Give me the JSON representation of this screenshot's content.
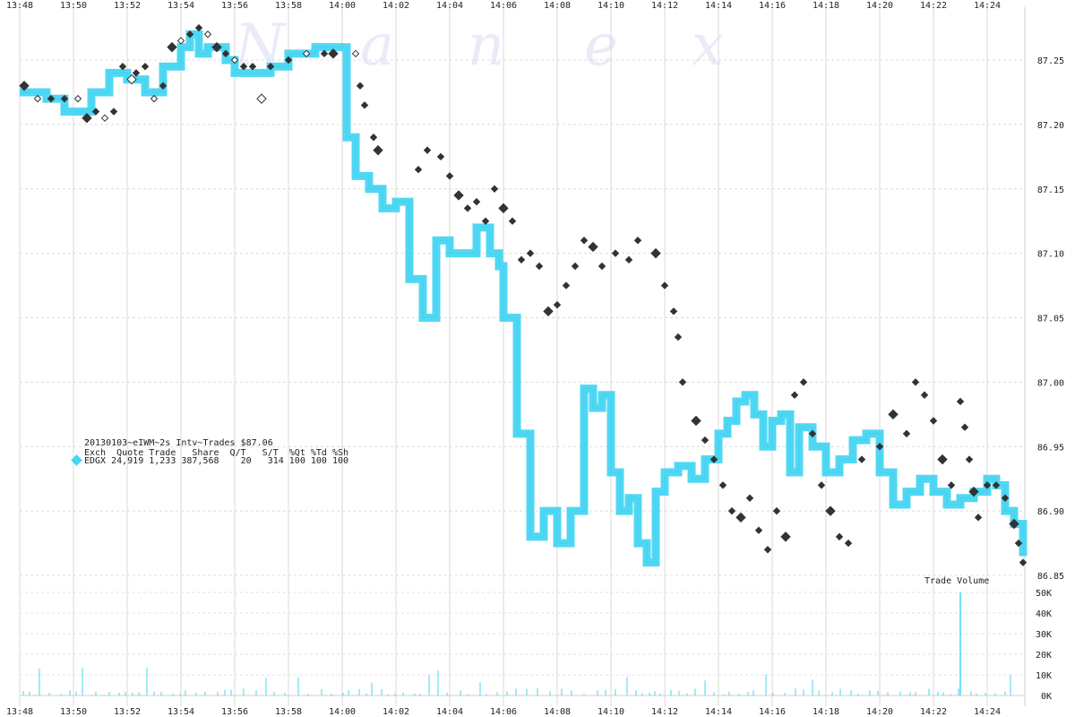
{
  "chart_data": {
    "type": "line",
    "watermark": [
      "N",
      "a",
      "n",
      "e",
      "x"
    ],
    "x_ticks": [
      "13:48",
      "13:50",
      "13:52",
      "13:54",
      "13:56",
      "13:58",
      "14:00",
      "14:02",
      "14:04",
      "14:06",
      "14:08",
      "14:10",
      "14:12",
      "14:14",
      "14:16",
      "14:18",
      "14:20",
      "14:22",
      "14:24"
    ],
    "price_ticks": [
      "87.25",
      "87.20",
      "87.15",
      "87.10",
      "87.05",
      "87.00",
      "86.95",
      "86.90",
      "86.85"
    ],
    "price_ylim": [
      86.85,
      87.25
    ],
    "volume_label": "Trade Volume",
    "volume_ticks": [
      "50K",
      "40K",
      "30K",
      "20K",
      "10K",
      "0K"
    ],
    "volume_ylim": [
      0,
      50000
    ],
    "info_title": "20130103~eIWM~2s Intv~Trades $87.06",
    "info_header": "Exch  Quote Trade   Share  Q/T   S/T  %Qt %Td %Sh",
    "info_row": "EDGX 24,919 1,233 387,568    20   314 100 100 100",
    "quote_color": "#47d5f2",
    "trade_color": "#333333",
    "quote_series": [
      [
        "13:48:00",
        87.225
      ],
      [
        "13:49:00",
        87.22
      ],
      [
        "13:49:40",
        87.21
      ],
      [
        "13:50:00",
        87.21
      ],
      [
        "13:50:40",
        87.225
      ],
      [
        "13:51:20",
        87.24
      ],
      [
        "13:52:00",
        87.235
      ],
      [
        "13:52:40",
        87.225
      ],
      [
        "13:53:20",
        87.245
      ],
      [
        "13:54:00",
        87.26
      ],
      [
        "13:54:20",
        87.27
      ],
      [
        "13:54:40",
        87.255
      ],
      [
        "13:55:00",
        87.26
      ],
      [
        "13:55:40",
        87.25
      ],
      [
        "13:56:00",
        87.24
      ],
      [
        "13:56:40",
        87.24
      ],
      [
        "13:57:20",
        87.245
      ],
      [
        "13:58:00",
        87.255
      ],
      [
        "13:59:00",
        87.26
      ],
      [
        "14:00:00",
        87.26
      ],
      [
        "14:00:10",
        87.19
      ],
      [
        "14:00:30",
        87.16
      ],
      [
        "14:01:00",
        87.15
      ],
      [
        "14:01:30",
        87.135
      ],
      [
        "14:02:00",
        87.14
      ],
      [
        "14:02:30",
        87.08
      ],
      [
        "14:03:00",
        87.05
      ],
      [
        "14:03:30",
        87.11
      ],
      [
        "14:04:00",
        87.1
      ],
      [
        "14:04:30",
        87.1
      ],
      [
        "14:05:00",
        87.12
      ],
      [
        "14:05:30",
        87.1
      ],
      [
        "14:05:50",
        87.09
      ],
      [
        "14:06:00",
        87.05
      ],
      [
        "14:06:30",
        86.96
      ],
      [
        "14:07:00",
        86.88
      ],
      [
        "14:07:30",
        86.9
      ],
      [
        "14:08:00",
        86.875
      ],
      [
        "14:08:30",
        86.9
      ],
      [
        "14:09:00",
        86.995
      ],
      [
        "14:09:20",
        86.98
      ],
      [
        "14:09:40",
        86.99
      ],
      [
        "14:10:00",
        86.93
      ],
      [
        "14:10:20",
        86.9
      ],
      [
        "14:10:40",
        86.91
      ],
      [
        "14:11:00",
        86.875
      ],
      [
        "14:11:20",
        86.86
      ],
      [
        "14:11:40",
        86.915
      ],
      [
        "14:12:00",
        86.93
      ],
      [
        "14:12:30",
        86.935
      ],
      [
        "14:13:00",
        86.925
      ],
      [
        "14:13:30",
        86.94
      ],
      [
        "14:14:00",
        86.96
      ],
      [
        "14:14:20",
        86.97
      ],
      [
        "14:14:40",
        86.985
      ],
      [
        "14:15:00",
        86.99
      ],
      [
        "14:15:20",
        86.975
      ],
      [
        "14:15:40",
        86.95
      ],
      [
        "14:16:00",
        86.97
      ],
      [
        "14:16:20",
        86.975
      ],
      [
        "14:16:40",
        86.93
      ],
      [
        "14:17:00",
        86.965
      ],
      [
        "14:17:30",
        86.95
      ],
      [
        "14:18:00",
        86.93
      ],
      [
        "14:18:30",
        86.94
      ],
      [
        "14:19:00",
        86.955
      ],
      [
        "14:19:30",
        86.96
      ],
      [
        "14:20:00",
        86.93
      ],
      [
        "14:20:30",
        86.905
      ],
      [
        "14:21:00",
        86.915
      ],
      [
        "14:21:30",
        86.925
      ],
      [
        "14:22:00",
        86.915
      ],
      [
        "14:22:30",
        86.905
      ],
      [
        "14:23:00",
        86.91
      ],
      [
        "14:23:30",
        86.915
      ],
      [
        "14:24:00",
        86.925
      ],
      [
        "14:24:20",
        86.92
      ],
      [
        "14:24:40",
        86.9
      ],
      [
        "14:25:00",
        86.89
      ],
      [
        "14:25:20",
        86.865
      ]
    ],
    "trades": [
      [
        "13:48:10",
        87.23
      ],
      [
        "13:48:40",
        87.22
      ],
      [
        "13:49:10",
        87.22
      ],
      [
        "13:49:40",
        87.22
      ],
      [
        "13:50:10",
        87.22
      ],
      [
        "13:50:30",
        87.205
      ],
      [
        "13:50:50",
        87.21
      ],
      [
        "13:51:10",
        87.205
      ],
      [
        "13:51:30",
        87.21
      ],
      [
        "13:51:50",
        87.245
      ],
      [
        "13:52:10",
        87.235
      ],
      [
        "13:52:20",
        87.24
      ],
      [
        "13:52:40",
        87.245
      ],
      [
        "13:53:00",
        87.22
      ],
      [
        "13:53:20",
        87.23
      ],
      [
        "13:53:40",
        87.26
      ],
      [
        "13:54:00",
        87.265
      ],
      [
        "13:54:20",
        87.27
      ],
      [
        "13:54:40",
        87.275
      ],
      [
        "13:55:00",
        87.27
      ],
      [
        "13:55:20",
        87.26
      ],
      [
        "13:55:40",
        87.255
      ],
      [
        "13:56:00",
        87.25
      ],
      [
        "13:56:20",
        87.245
      ],
      [
        "13:56:40",
        87.245
      ],
      [
        "13:57:00",
        87.22
      ],
      [
        "13:57:20",
        87.245
      ],
      [
        "13:58:00",
        87.25
      ],
      [
        "13:58:40",
        87.255
      ],
      [
        "13:59:20",
        87.255
      ],
      [
        "13:59:40",
        87.255
      ],
      [
        "14:00:30",
        87.255
      ],
      [
        "14:00:40",
        87.23
      ],
      [
        "14:00:50",
        87.215
      ],
      [
        "14:01:10",
        87.19
      ],
      [
        "14:01:20",
        87.18
      ],
      [
        "14:02:50",
        87.165
      ],
      [
        "14:03:10",
        87.18
      ],
      [
        "14:03:40",
        87.175
      ],
      [
        "14:04:00",
        87.16
      ],
      [
        "14:04:20",
        87.145
      ],
      [
        "14:04:40",
        87.135
      ],
      [
        "14:05:00",
        87.14
      ],
      [
        "14:05:20",
        87.125
      ],
      [
        "14:05:40",
        87.15
      ],
      [
        "14:06:00",
        87.135
      ],
      [
        "14:06:20",
        87.125
      ],
      [
        "14:06:40",
        87.095
      ],
      [
        "14:07:00",
        87.1
      ],
      [
        "14:07:20",
        87.09
      ],
      [
        "14:07:40",
        87.055
      ],
      [
        "14:08:00",
        87.06
      ],
      [
        "14:08:20",
        87.075
      ],
      [
        "14:08:40",
        87.09
      ],
      [
        "14:09:00",
        87.11
      ],
      [
        "14:09:20",
        87.105
      ],
      [
        "14:09:40",
        87.09
      ],
      [
        "14:10:10",
        87.1
      ],
      [
        "14:10:40",
        87.095
      ],
      [
        "14:11:00",
        87.11
      ],
      [
        "14:11:40",
        87.1
      ],
      [
        "14:12:00",
        87.075
      ],
      [
        "14:12:20",
        87.055
      ],
      [
        "14:12:30",
        87.035
      ],
      [
        "14:12:40",
        87.0
      ],
      [
        "14:13:10",
        86.97
      ],
      [
        "14:13:30",
        86.955
      ],
      [
        "14:13:50",
        86.94
      ],
      [
        "14:14:10",
        86.92
      ],
      [
        "14:14:30",
        86.9
      ],
      [
        "14:14:50",
        86.895
      ],
      [
        "14:15:10",
        86.91
      ],
      [
        "14:15:30",
        86.885
      ],
      [
        "14:15:50",
        86.87
      ],
      [
        "14:16:10",
        86.9
      ],
      [
        "14:16:30",
        86.88
      ],
      [
        "14:16:50",
        86.99
      ],
      [
        "14:17:10",
        87.0
      ],
      [
        "14:17:30",
        86.96
      ],
      [
        "14:17:50",
        86.92
      ],
      [
        "14:18:10",
        86.9
      ],
      [
        "14:18:30",
        86.88
      ],
      [
        "14:18:50",
        86.875
      ],
      [
        "14:19:20",
        86.94
      ],
      [
        "14:20:00",
        86.95
      ],
      [
        "14:20:30",
        86.975
      ],
      [
        "14:21:00",
        86.96
      ],
      [
        "14:21:20",
        87.0
      ],
      [
        "14:21:40",
        86.99
      ],
      [
        "14:22:00",
        86.97
      ],
      [
        "14:22:20",
        86.94
      ],
      [
        "14:22:40",
        86.92
      ],
      [
        "14:23:00",
        86.985
      ],
      [
        "14:23:10",
        86.965
      ],
      [
        "14:23:20",
        86.94
      ],
      [
        "14:23:30",
        86.915
      ],
      [
        "14:23:40",
        86.895
      ],
      [
        "14:24:00",
        86.92
      ],
      [
        "14:24:20",
        86.92
      ],
      [
        "14:24:40",
        86.91
      ],
      [
        "14:25:00",
        86.89
      ],
      [
        "14:25:10",
        86.875
      ],
      [
        "14:25:20",
        86.86
      ]
    ],
    "volume_spike": [
      "14:23:00",
      50000
    ]
  }
}
